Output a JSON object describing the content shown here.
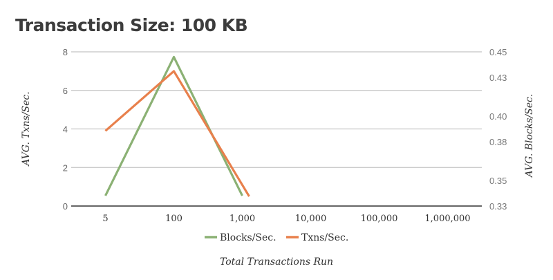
{
  "chart_data": {
    "type": "line",
    "title": "Transaction Size: 100 KB",
    "xlabel": "Total Transactions Run",
    "ylabel": "AVG. Txns/Sec.",
    "y2label": "AVG. Blocks/Sec.",
    "categories": [
      "5",
      "100",
      "1,000",
      "10,000",
      "100,000",
      "1,000,000"
    ],
    "ylim": [
      0,
      8
    ],
    "yticks": [
      "0",
      "2",
      "4",
      "6",
      "8"
    ],
    "y2lim": [
      0.33,
      0.45
    ],
    "y2ticks": [
      "0.33",
      "0.35",
      "0.38",
      "0.40",
      "0.43",
      "0.45"
    ],
    "grid": true,
    "legend_position": "bottom",
    "series": [
      {
        "name": "Blocks/Sec.",
        "axis": "right",
        "color": "#8bb174",
        "points": [
          [
            5,
            0.338
          ],
          [
            100,
            0.446
          ],
          [
            1000,
            0.338
          ]
        ]
      },
      {
        "name": "Txns/Sec.",
        "axis": "left",
        "color": "#e8804c",
        "points": [
          [
            5,
            3.9
          ],
          [
            100,
            7.0
          ],
          [
            1000,
            0.5
          ]
        ]
      }
    ]
  }
}
